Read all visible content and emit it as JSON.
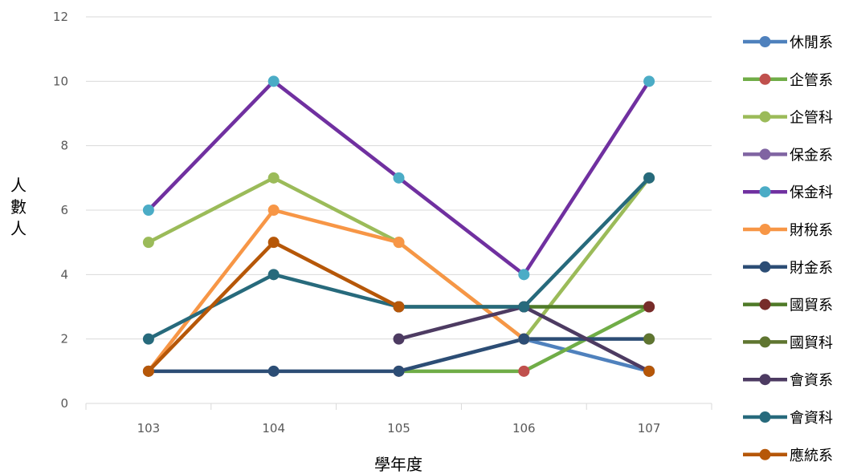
{
  "chart_data": {
    "type": "line",
    "xlabel": "學年度",
    "ylabel_chars": [
      "人",
      "數",
      "人"
    ],
    "categories": [
      "103",
      "104",
      "105",
      "106",
      "107"
    ],
    "ylim": [
      0,
      12
    ],
    "yticks": [
      0,
      2,
      4,
      6,
      8,
      10,
      12
    ],
    "grid": true,
    "legend_position": "right",
    "series": [
      {
        "name": "休閒系",
        "line_color": "#4f81bd",
        "marker_color": "#4f81bd",
        "values": [
          null,
          null,
          null,
          2,
          1
        ]
      },
      {
        "name": "企管系",
        "line_color": "#70ad47",
        "marker_color": "#c0504d",
        "values": [
          null,
          null,
          1,
          1,
          3
        ]
      },
      {
        "name": "企管科",
        "line_color": "#9bbb59",
        "marker_color": "#9bbb59",
        "values": [
          5,
          7,
          5,
          2,
          7
        ]
      },
      {
        "name": "保金系",
        "line_color": "#8064a2",
        "marker_color": "#8064a2",
        "values": [
          null,
          null,
          null,
          null,
          null
        ]
      },
      {
        "name": "保金科",
        "line_color": "#7030a0",
        "marker_color": "#4bacc6",
        "values": [
          6,
          10,
          7,
          4,
          10
        ]
      },
      {
        "name": "財稅系",
        "line_color": "#f79646",
        "marker_color": "#f79646",
        "values": [
          1,
          6,
          5,
          2,
          null
        ]
      },
      {
        "name": "財金系",
        "line_color": "#2c4d75",
        "marker_color": "#2c4d75",
        "values": [
          1,
          1,
          1,
          2,
          2
        ]
      },
      {
        "name": "國貿系",
        "line_color": "#4f7a28",
        "marker_color": "#772c2a",
        "values": [
          null,
          null,
          3,
          3,
          3
        ]
      },
      {
        "name": "國貿科",
        "line_color": "#5f7530",
        "marker_color": "#5f7530",
        "values": [
          null,
          null,
          null,
          null,
          2
        ]
      },
      {
        "name": "會資系",
        "line_color": "#4d3b62",
        "marker_color": "#4d3b62",
        "values": [
          null,
          null,
          2,
          3,
          1
        ]
      },
      {
        "name": "會資科",
        "line_color": "#276a7c",
        "marker_color": "#276a7c",
        "values": [
          2,
          4,
          3,
          3,
          7
        ]
      },
      {
        "name": "應統系",
        "line_color": "#b65708",
        "marker_color": "#b65708",
        "values": [
          1,
          5,
          3,
          null,
          1
        ]
      }
    ]
  }
}
